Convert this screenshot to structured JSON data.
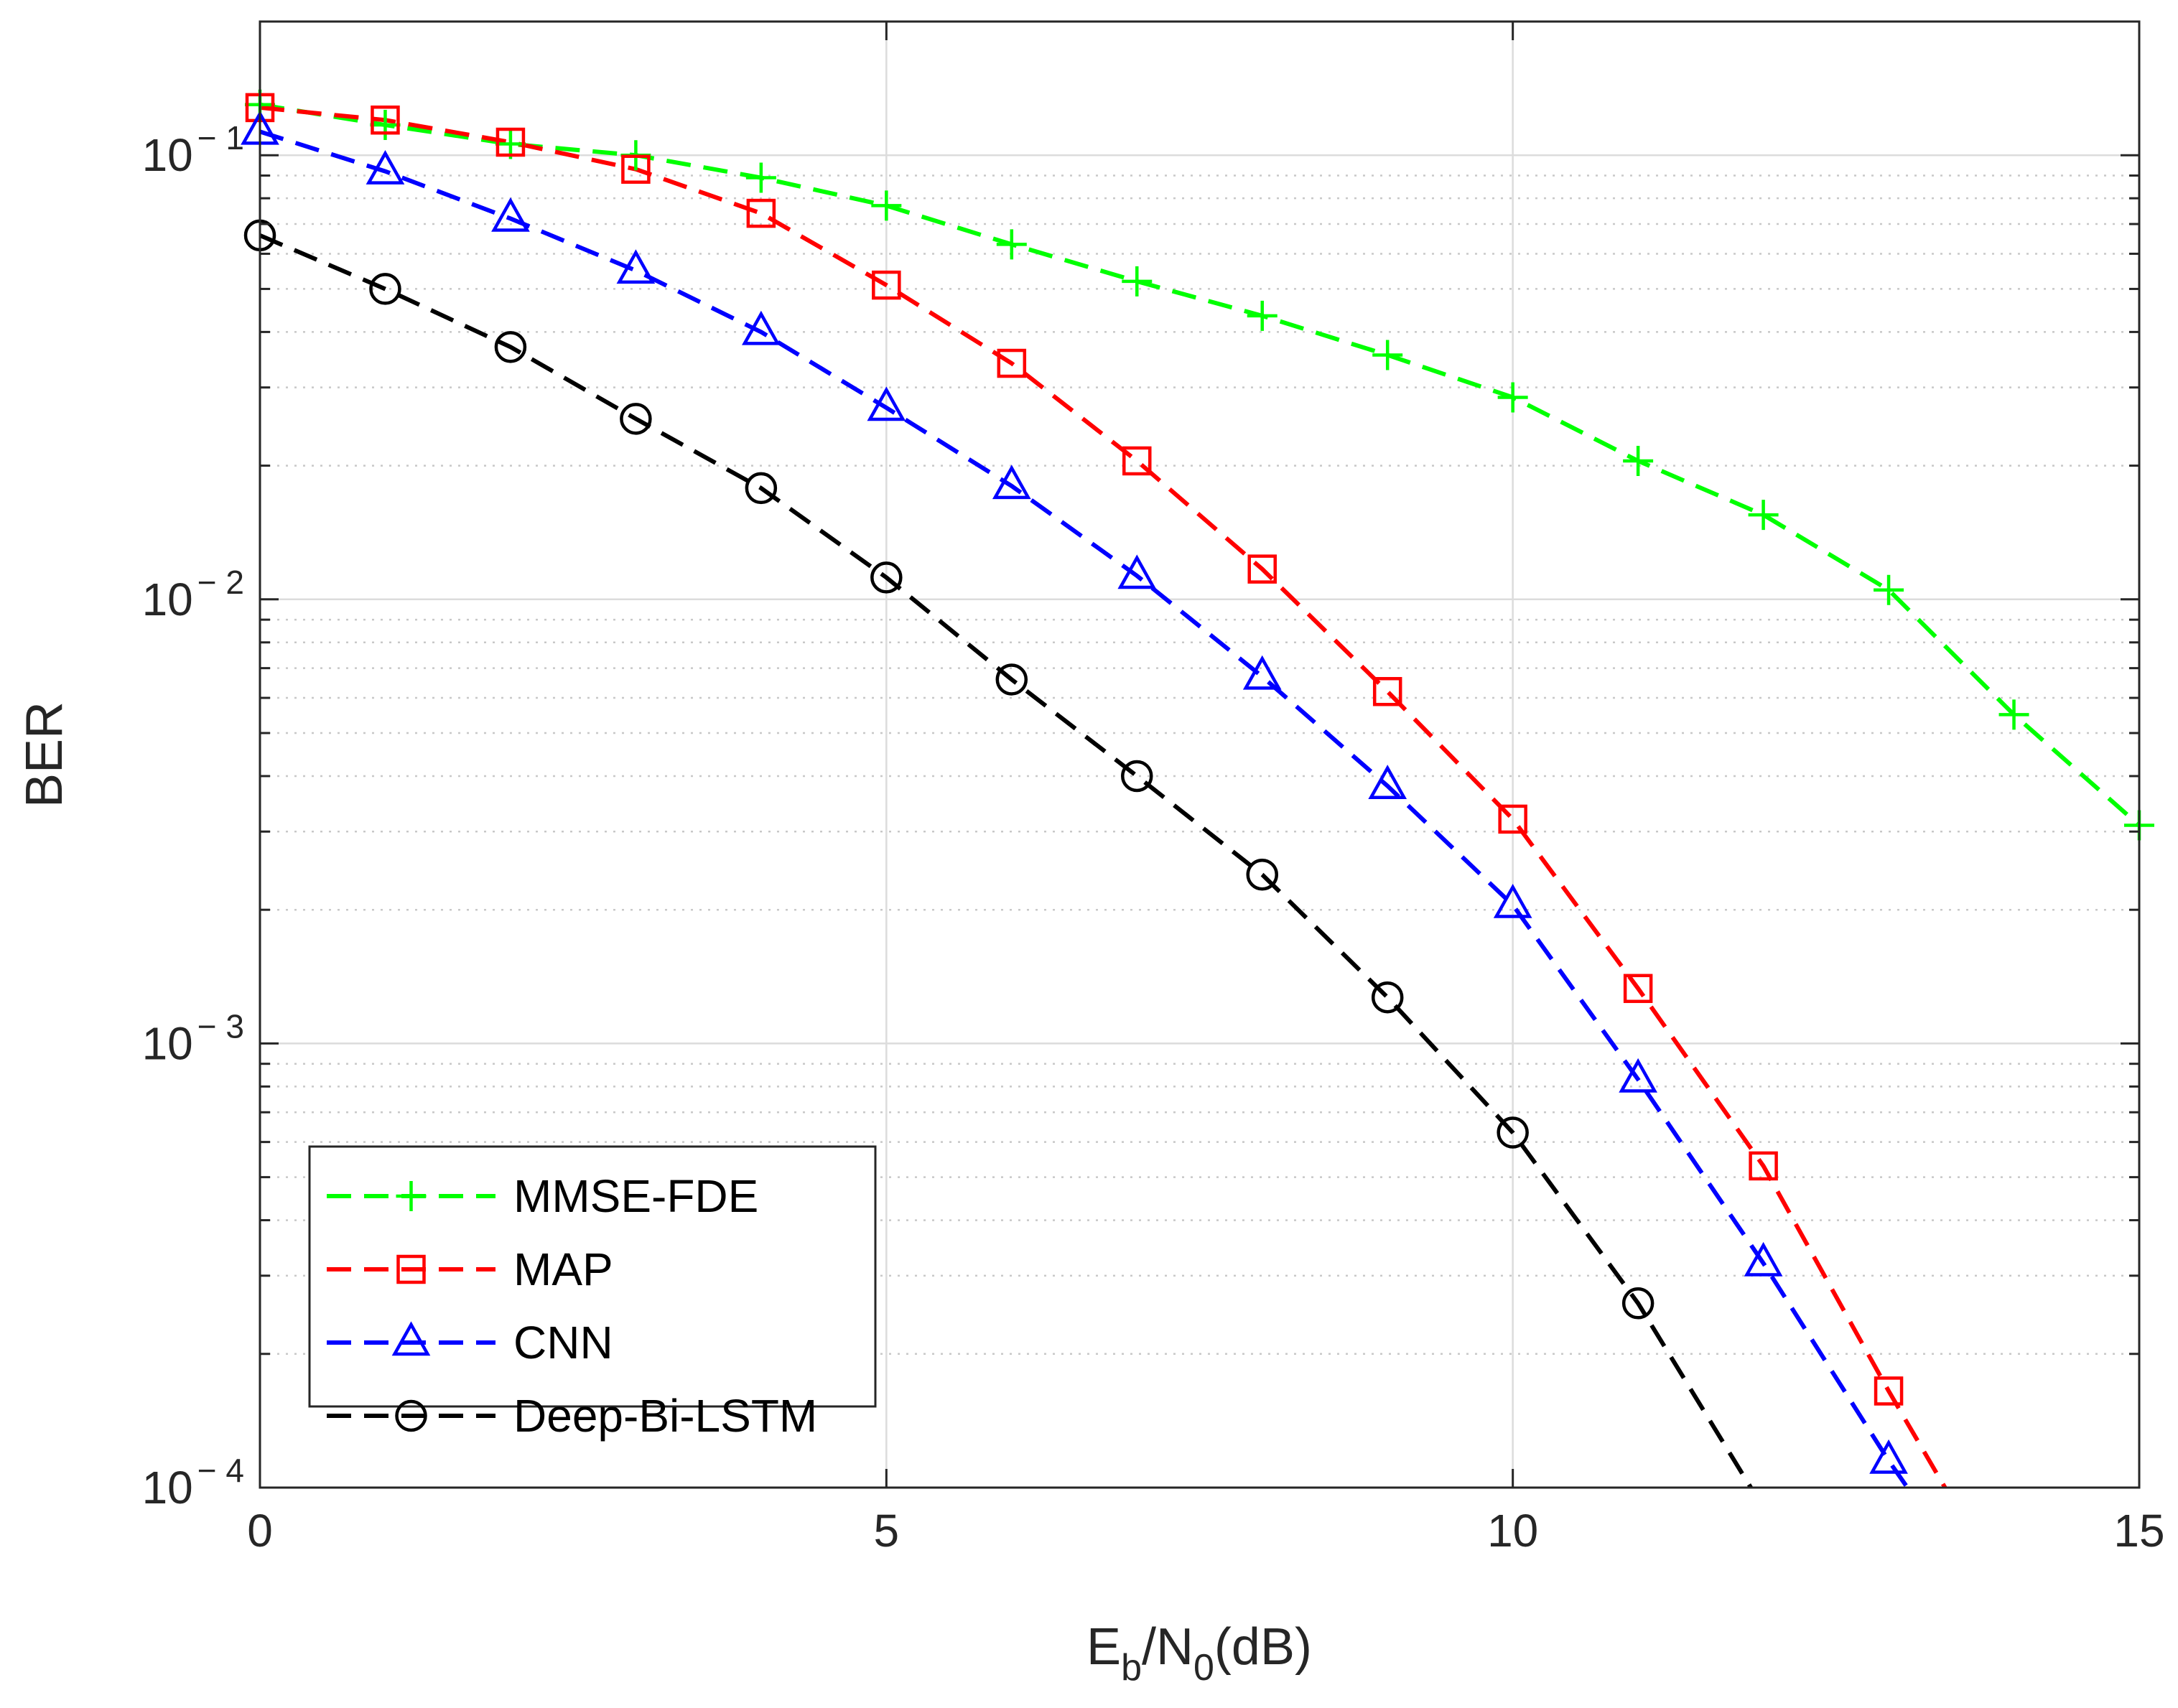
{
  "chart_data": {
    "type": "line",
    "title": "",
    "xlabel": {
      "base": "E",
      "sub1": "b",
      "mid": "/N",
      "sub2": "0",
      "tail": "(dB)"
    },
    "ylabel": "BER",
    "xlim": [
      0,
      15
    ],
    "ylim": [
      0.0001,
      0.2
    ],
    "yscale": "log",
    "grid": true,
    "legend_location": "bottom-left",
    "x_ticks": [
      {
        "value": 0,
        "label": "0"
      },
      {
        "value": 5,
        "label": "5"
      },
      {
        "value": 10,
        "label": "10"
      },
      {
        "value": 15,
        "label": "15"
      }
    ],
    "y_ticks": [
      {
        "value": 0.1,
        "base": "10",
        "exp": "− 1"
      },
      {
        "value": 0.01,
        "base": "10",
        "exp": "− 2"
      },
      {
        "value": 0.001,
        "base": "10",
        "exp": "− 3"
      },
      {
        "value": 0.0001,
        "base": "10",
        "exp": "− 4"
      }
    ],
    "series": [
      {
        "name": "MMSE-FDE",
        "color": "#00ff00",
        "marker": "plus",
        "x": [
          0,
          1,
          2,
          3,
          4,
          5,
          6,
          7,
          8,
          9,
          10,
          11,
          12,
          13,
          14,
          15
        ],
        "values": [
          0.13,
          0.117,
          0.106,
          0.1,
          0.089,
          0.077,
          0.063,
          0.052,
          0.0435,
          0.0355,
          0.0285,
          0.0205,
          0.0155,
          0.0105,
          0.0055,
          0.0031
        ]
      },
      {
        "name": "MAP",
        "color": "#ff0000",
        "marker": "square",
        "x": [
          0,
          1,
          2,
          3,
          4,
          5,
          6,
          7,
          8,
          9,
          10,
          11,
          12,
          13,
          13.45
        ],
        "values": [
          0.128,
          0.12,
          0.107,
          0.093,
          0.074,
          0.051,
          0.034,
          0.0205,
          0.0117,
          0.0062,
          0.0032,
          0.00133,
          0.00053,
          0.000165,
          0.0001
        ],
        "marker_count": 14
      },
      {
        "name": "CNN",
        "color": "#0000ff",
        "marker": "triangle",
        "x": [
          0,
          1,
          2,
          3,
          4,
          5,
          6,
          7,
          8,
          9,
          10,
          11,
          12,
          13,
          13.15
        ],
        "values": [
          0.113,
          0.092,
          0.072,
          0.055,
          0.04,
          0.027,
          0.018,
          0.0113,
          0.0067,
          0.0038,
          0.00205,
          0.00083,
          0.00032,
          0.000115,
          0.0001
        ],
        "marker_count": 14
      },
      {
        "name": "Deep-Bi-LSTM",
        "color": "#000000",
        "marker": "circle",
        "x": [
          0,
          1,
          2,
          3,
          4,
          5,
          6,
          7,
          8,
          9,
          10,
          11,
          11.9
        ],
        "values": [
          0.066,
          0.05,
          0.037,
          0.0255,
          0.0178,
          0.0112,
          0.0066,
          0.004,
          0.0024,
          0.00127,
          0.00063,
          0.00026,
          0.0001
        ],
        "marker_count": 12
      }
    ]
  }
}
